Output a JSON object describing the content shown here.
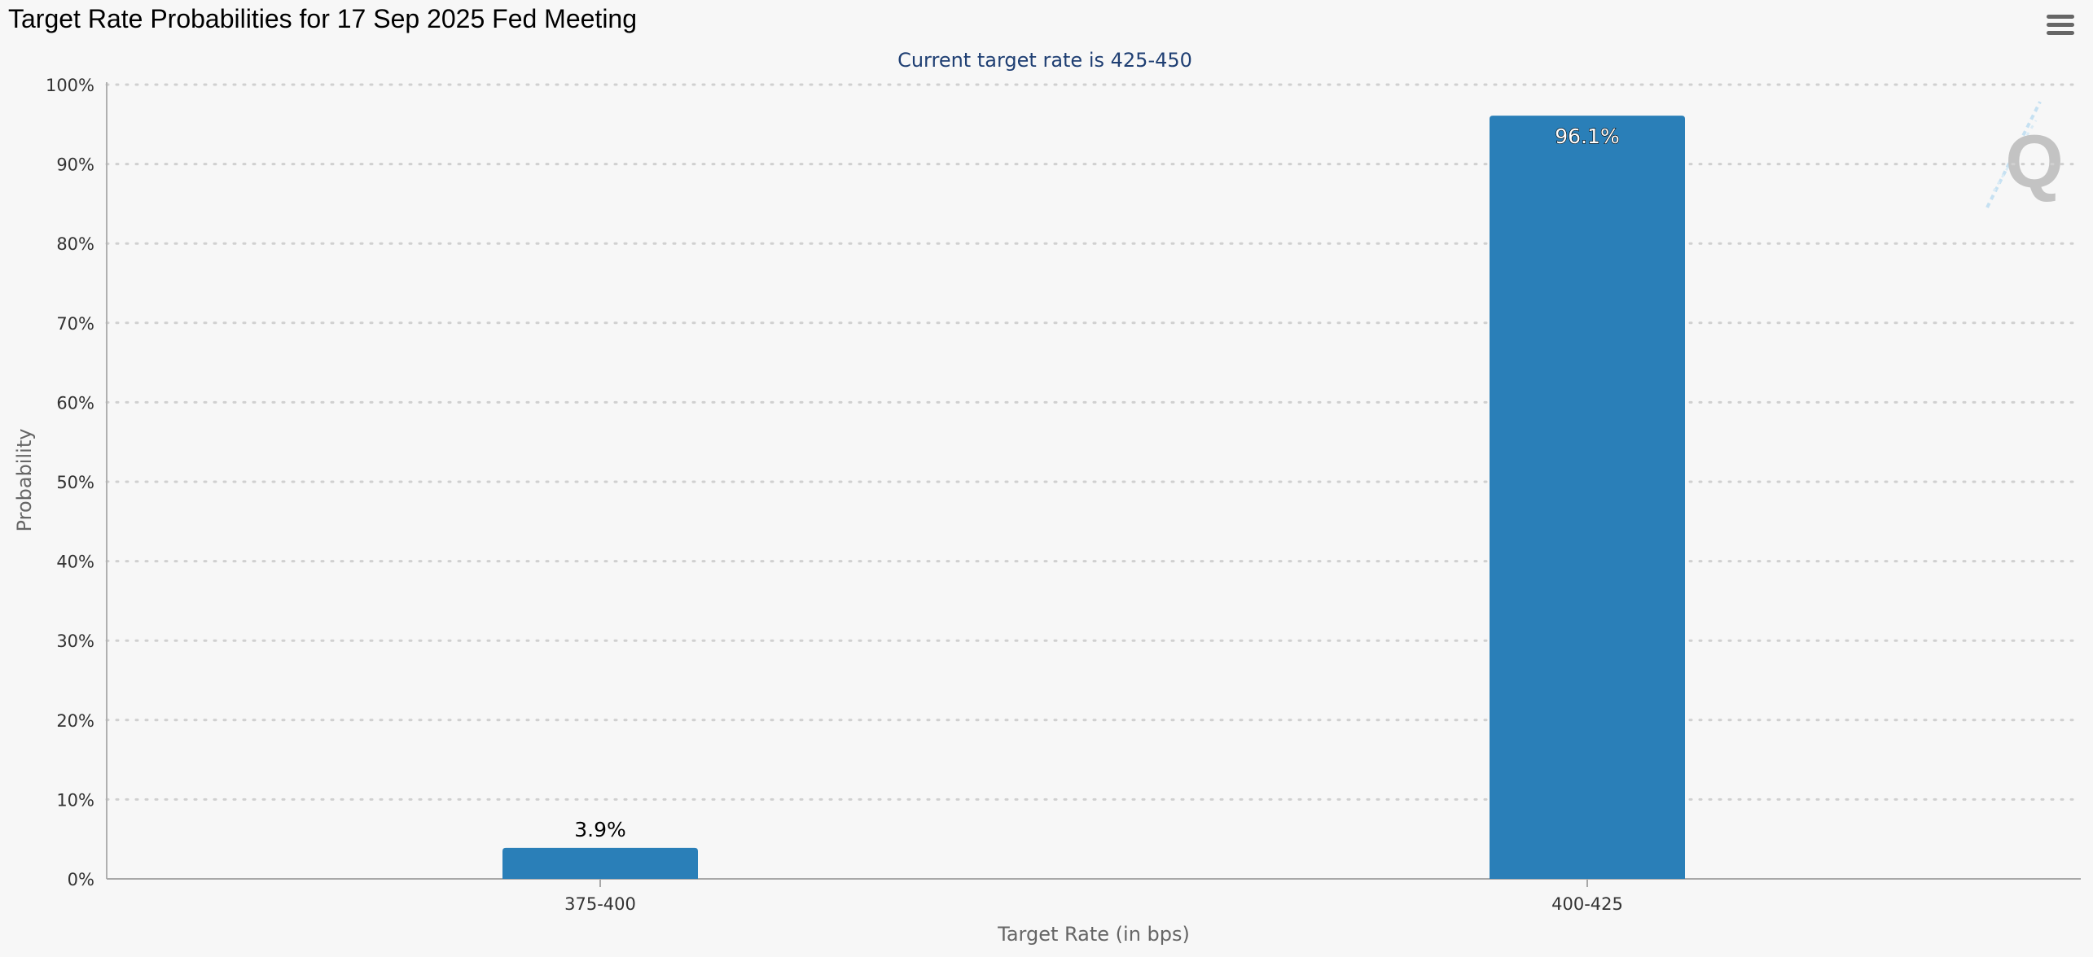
{
  "header": {
    "title": "Target Rate Probabilities for 17 Sep 2025 Fed Meeting",
    "menu_icon": "hamburger-menu-icon"
  },
  "watermark": {
    "icon": "quikstrike-q-logo",
    "letter": "Q"
  },
  "chart_data": {
    "type": "bar",
    "title": "",
    "subtitle": "Current target rate is 425-450",
    "categories": [
      "375-400",
      "400-425"
    ],
    "values": [
      3.9,
      96.1
    ],
    "data_labels": [
      "3.9%",
      "96.1%"
    ],
    "xlabel": "Target Rate (in bps)",
    "ylabel": "Probability",
    "ylim": [
      0,
      100
    ],
    "yticks": [
      "0%",
      "10%",
      "20%",
      "30%",
      "40%",
      "50%",
      "60%",
      "70%",
      "80%",
      "90%",
      "100%"
    ],
    "grid": true,
    "legend": "none",
    "colors": {
      "bar": "#2a7fb8",
      "subtitle": "#1f3f73",
      "axis_text": "#333333",
      "axis_title": "#666666",
      "gridline": "#d0d0d0"
    }
  }
}
